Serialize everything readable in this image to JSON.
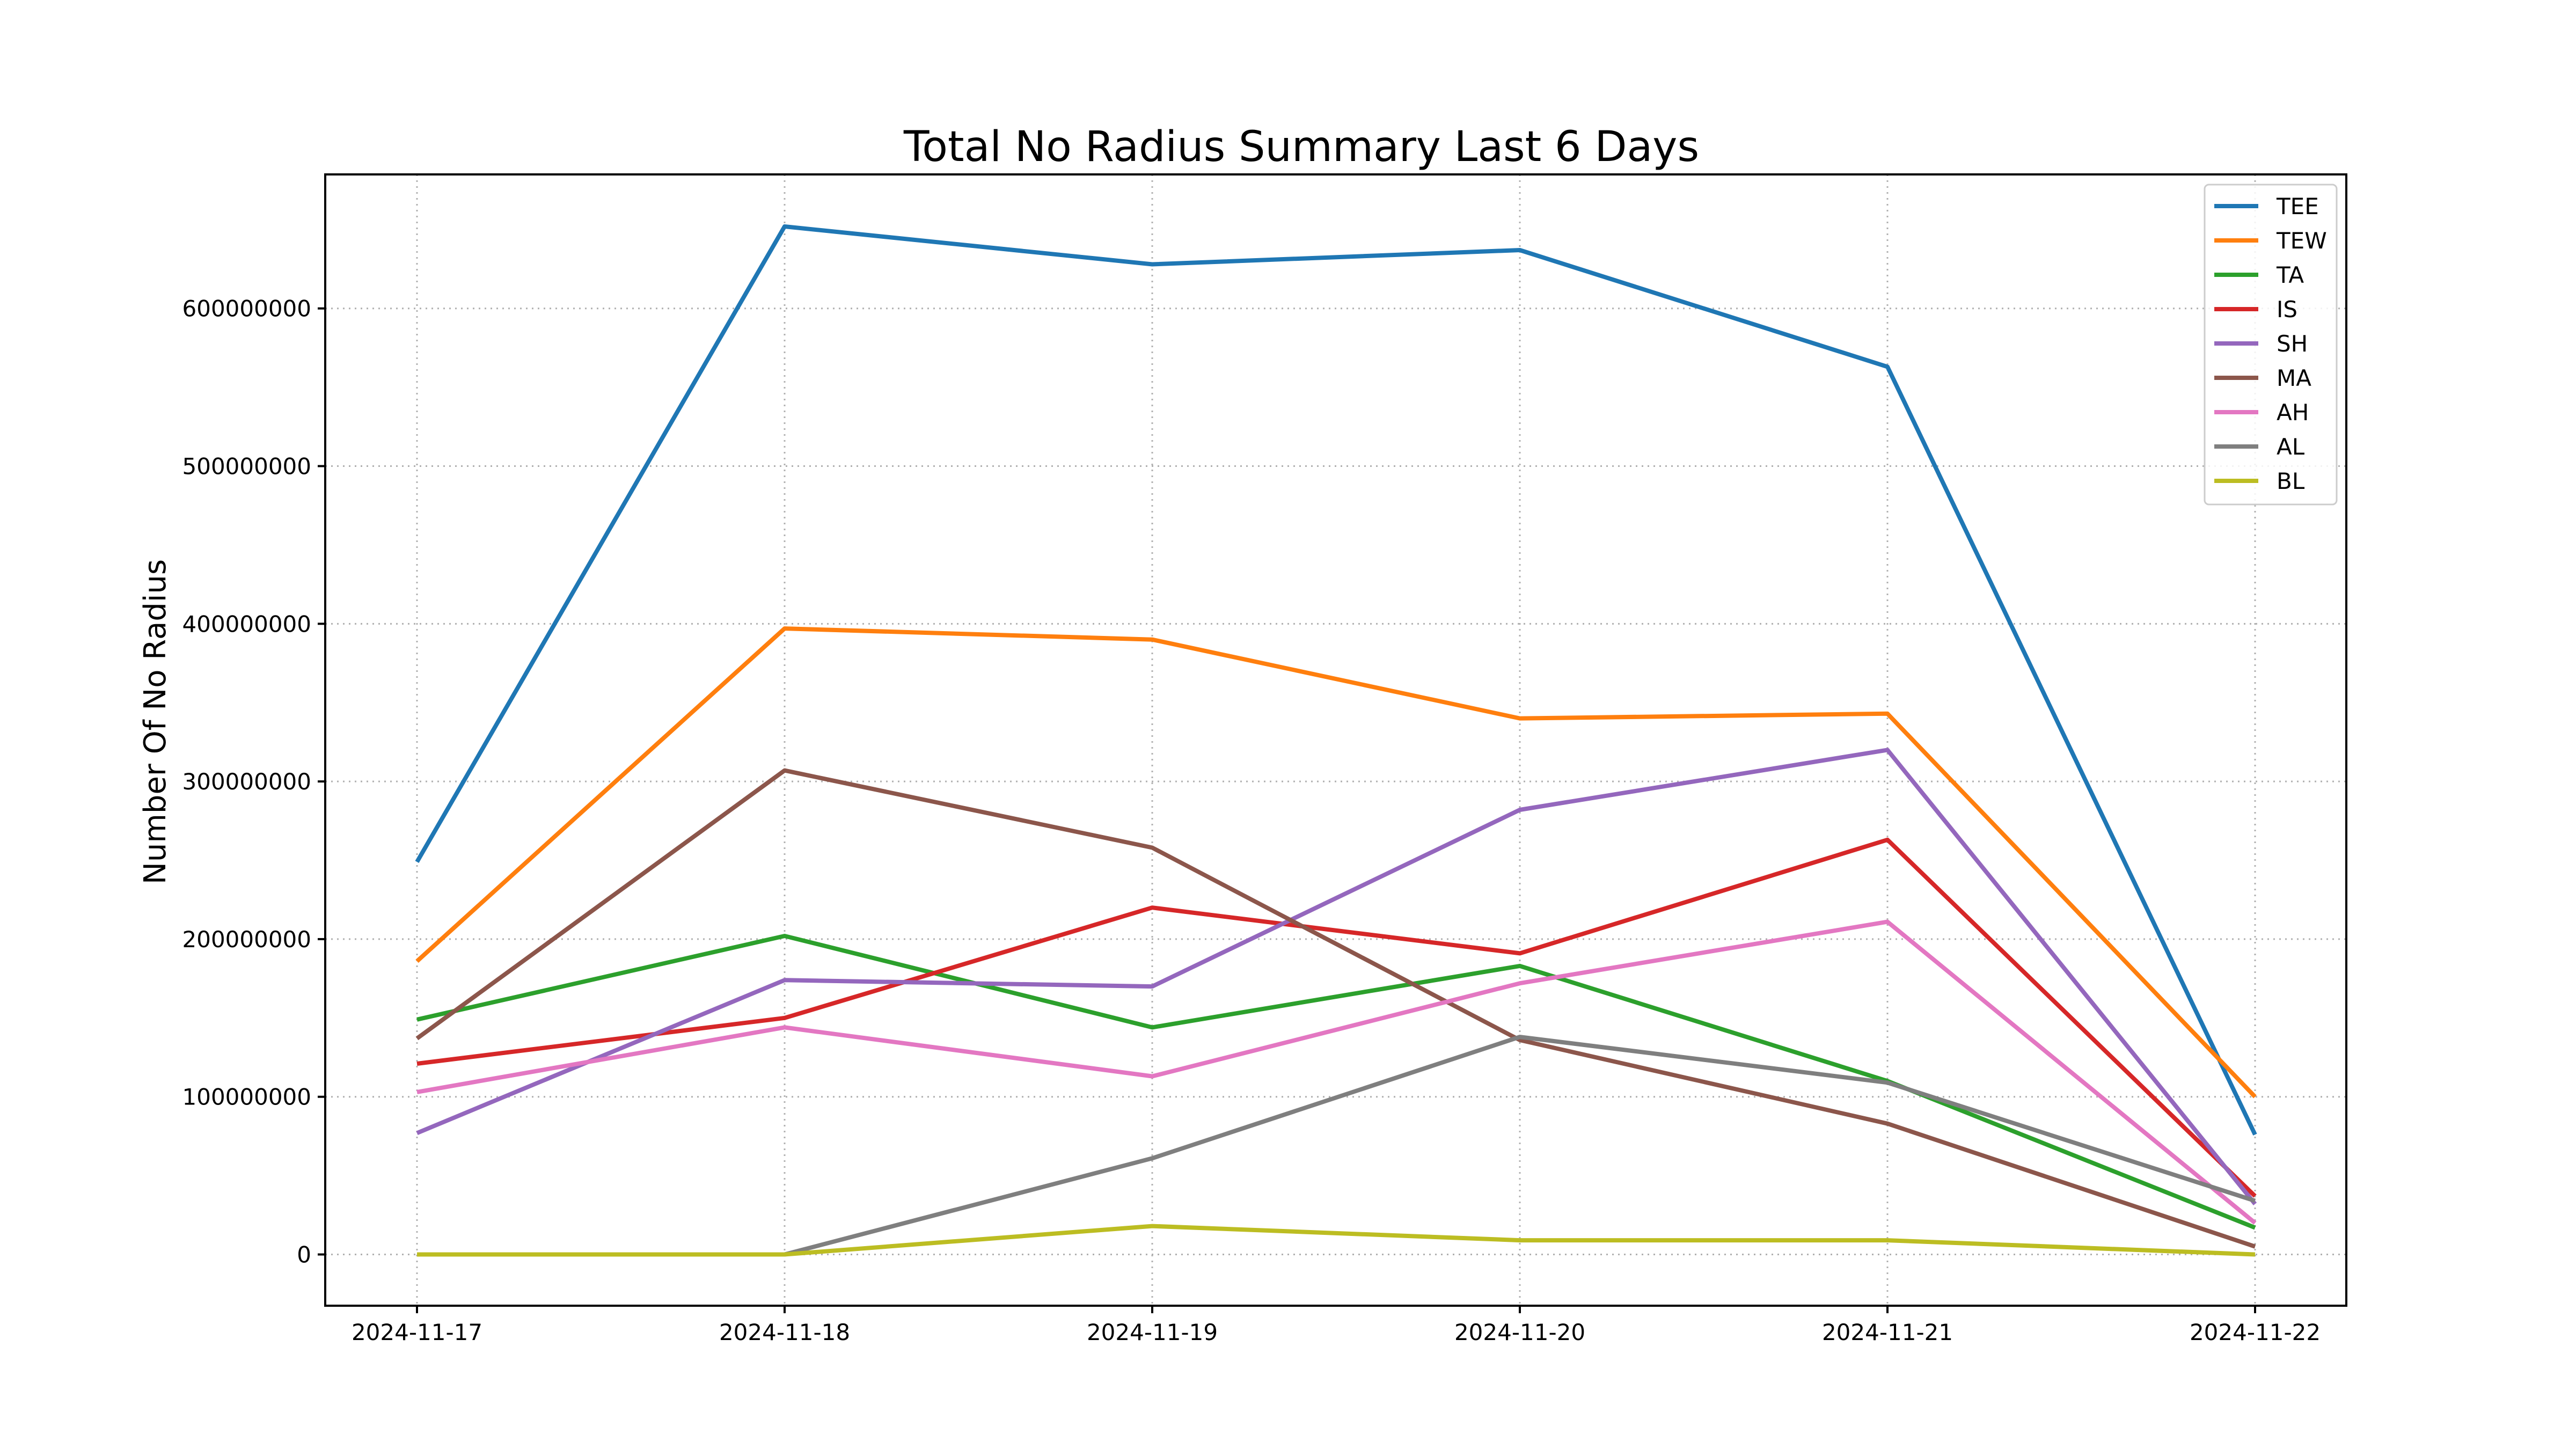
{
  "chart_data": {
    "type": "line",
    "title": "Total No Radius Summary Last 6 Days",
    "xlabel": "",
    "ylabel": "Number Of No Radius",
    "categories": [
      "2024-11-17",
      "2024-11-18",
      "2024-11-19",
      "2024-11-20",
      "2024-11-21",
      "2024-11-22"
    ],
    "yticks": [
      0,
      100000000,
      200000000,
      300000000,
      400000000,
      500000000,
      600000000
    ],
    "ytick_labels": [
      "0",
      "100000000",
      "200000000",
      "300000000",
      "400000000",
      "500000000",
      "600000000"
    ],
    "ylim": [
      -32500000,
      685000000
    ],
    "grid": true,
    "legend_position": "top-right",
    "series": [
      {
        "name": "TEE",
        "color": "#1f77b4",
        "values": [
          249000000,
          652000000,
          628000000,
          637000000,
          563000000,
          76000000
        ]
      },
      {
        "name": "TEW",
        "color": "#ff7f0e",
        "values": [
          186000000,
          397000000,
          390000000,
          340000000,
          343000000,
          100000000
        ]
      },
      {
        "name": "TA",
        "color": "#2ca02c",
        "values": [
          149000000,
          202000000,
          144000000,
          183000000,
          110000000,
          17000000
        ]
      },
      {
        "name": "IS",
        "color": "#d62728",
        "values": [
          121000000,
          150000000,
          220000000,
          191000000,
          263000000,
          37000000
        ]
      },
      {
        "name": "SH",
        "color": "#9467bd",
        "values": [
          77000000,
          174000000,
          170000000,
          282000000,
          320000000,
          32000000
        ]
      },
      {
        "name": "MA",
        "color": "#8c564b",
        "values": [
          137000000,
          307000000,
          258000000,
          136000000,
          83000000,
          5000000
        ]
      },
      {
        "name": "AH",
        "color": "#e377c2",
        "values": [
          103000000,
          144000000,
          113000000,
          172000000,
          211000000,
          20000000
        ]
      },
      {
        "name": "AL",
        "color": "#7f7f7f",
        "values": [
          null,
          0,
          61000000,
          138000000,
          109000000,
          34000000
        ]
      },
      {
        "name": "BL",
        "color": "#bcbd22",
        "values": [
          0,
          0,
          18000000,
          9000000,
          9000000,
          0
        ]
      }
    ]
  }
}
